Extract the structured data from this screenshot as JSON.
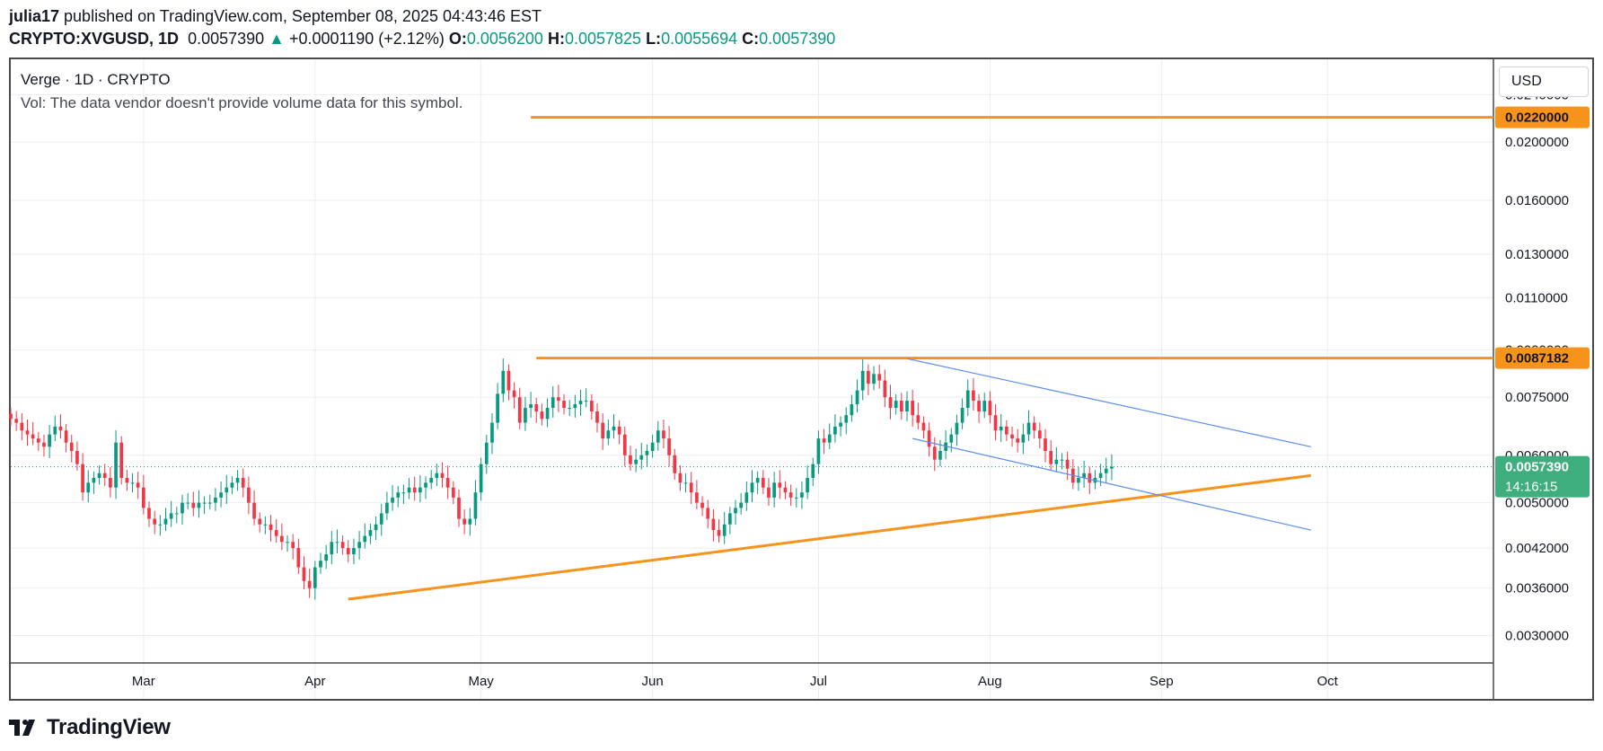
{
  "header": {
    "user": "julia17",
    "published_text": " published on TradingView.com, September 08, 2025 04:43:46 EST",
    "symbol": "CRYPTO:XVGUSD, 1D",
    "last": "0.0057390",
    "change": "+0.0001190 (+2.12%)",
    "o_label": "O:",
    "o": "0.0056200",
    "h_label": "H:",
    "h": "0.0057825",
    "l_label": "L:",
    "l": "0.0055694",
    "c_label": "C:",
    "c": "0.0057390"
  },
  "legend": {
    "title": "Verge · 1D · CRYPTO",
    "vol": "Vol: The data vendor doesn't provide volume data for this symbol."
  },
  "currency": "USD",
  "brand": "TradingView",
  "colors": {
    "up": "#089981",
    "down": "#f23645",
    "orange": "#f7931a",
    "channel": "#5b8def",
    "grid": "#ebedf1",
    "last_price_bg": "#3fae7e"
  },
  "chart_data": {
    "type": "candlestick",
    "symbol": "XVGUSD",
    "timeframe": "1D",
    "x_range": [
      "2025-02-05",
      "2025-10-31"
    ],
    "y_scale": "log",
    "ylim": [
      0.0027,
      0.0275
    ],
    "x_ticks": [
      {
        "label": "Mar",
        "date": "2025-03-01"
      },
      {
        "label": "Apr",
        "date": "2025-04-01"
      },
      {
        "label": "May",
        "date": "2025-05-01"
      },
      {
        "label": "Jun",
        "date": "2025-06-01"
      },
      {
        "label": "Jul",
        "date": "2025-07-01"
      },
      {
        "label": "Aug",
        "date": "2025-08-01"
      },
      {
        "label": "Sep",
        "date": "2025-09-01"
      },
      {
        "label": "Oct",
        "date": "2025-10-01"
      }
    ],
    "y_ticks": [
      "0.0240000",
      "0.0200000",
      "0.0160000",
      "0.0130000",
      "0.0110000",
      "0.0090000",
      "0.0075000",
      "0.0060000",
      "0.0050000",
      "0.0042000",
      "0.0036000",
      "0.0030000"
    ],
    "last_price": {
      "value": 0.005739,
      "label": "0.0057390",
      "countdown": "14:16:15"
    },
    "price_labels": [
      {
        "value": 0.022,
        "label": "0.0220000"
      },
      {
        "value": 0.0087182,
        "label": "0.0087182"
      }
    ],
    "closes": [
      0.0069,
      0.0068,
      0.0066,
      0.0065,
      0.0064,
      0.0063,
      0.0062,
      0.0065,
      0.0067,
      0.0066,
      0.0063,
      0.0061,
      0.0058,
      0.0052,
      0.0054,
      0.0055,
      0.0056,
      0.0055,
      0.0053,
      0.0063,
      0.0055,
      0.0054,
      0.0054,
      0.0053,
      0.0049,
      0.0047,
      0.0046,
      0.0046,
      0.0047,
      0.0048,
      0.0048,
      0.005,
      0.005,
      0.0049,
      0.005,
      0.005,
      0.005,
      0.0051,
      0.0052,
      0.0053,
      0.0054,
      0.0055,
      0.0053,
      0.005,
      0.0047,
      0.0046,
      0.0046,
      0.0045,
      0.0044,
      0.0043,
      0.0043,
      0.0042,
      0.0039,
      0.0037,
      0.0036,
      0.0039,
      0.004,
      0.0041,
      0.0043,
      0.0043,
      0.0042,
      0.0041,
      0.0042,
      0.0043,
      0.0044,
      0.0045,
      0.0046,
      0.0048,
      0.005,
      0.0051,
      0.0052,
      0.0052,
      0.0053,
      0.0052,
      0.0053,
      0.0054,
      0.0055,
      0.0056,
      0.0055,
      0.0053,
      0.0051,
      0.0047,
      0.0046,
      0.0047,
      0.0052,
      0.0058,
      0.0063,
      0.0068,
      0.0076,
      0.0083,
      0.0077,
      0.0075,
      0.0068,
      0.0072,
      0.0073,
      0.0071,
      0.0069,
      0.0072,
      0.0075,
      0.0074,
      0.0072,
      0.0072,
      0.0073,
      0.0074,
      0.0074,
      0.0071,
      0.0068,
      0.0064,
      0.0066,
      0.0067,
      0.0065,
      0.006,
      0.0058,
      0.0059,
      0.006,
      0.0061,
      0.0063,
      0.0066,
      0.0064,
      0.006,
      0.0056,
      0.0054,
      0.0054,
      0.0052,
      0.005,
      0.0049,
      0.0047,
      0.0045,
      0.0044,
      0.0046,
      0.0048,
      0.0049,
      0.005,
      0.0052,
      0.0054,
      0.0055,
      0.0053,
      0.0051,
      0.0054,
      0.0053,
      0.0052,
      0.0051,
      0.0051,
      0.0052,
      0.0055,
      0.0058,
      0.0064,
      0.0063,
      0.0065,
      0.0067,
      0.0068,
      0.007,
      0.0073,
      0.0077,
      0.0083,
      0.0079,
      0.0082,
      0.008,
      0.0075,
      0.0072,
      0.0074,
      0.0071,
      0.0074,
      0.007,
      0.0068,
      0.0066,
      0.0062,
      0.0059,
      0.0061,
      0.0063,
      0.0065,
      0.0068,
      0.0072,
      0.0077,
      0.0074,
      0.0071,
      0.0074,
      0.007,
      0.0066,
      0.0067,
      0.0065,
      0.0064,
      0.0063,
      0.0065,
      0.0068,
      0.0066,
      0.0064,
      0.0061,
      0.0058,
      0.0059,
      0.0059,
      0.0057,
      0.0054,
      0.0055,
      0.0056,
      0.0054,
      0.0055,
      0.0056,
      0.0057,
      0.00574
    ],
    "horizontal_levels": [
      {
        "value": 0.022,
        "from": "2025-05-10",
        "to": "2025-10-31"
      },
      {
        "value": 0.0087182,
        "from": "2025-05-11",
        "to": "2025-10-31"
      }
    ],
    "trendlines": [
      {
        "name": "rising support",
        "from": [
          "2025-04-07",
          0.00345
        ],
        "to": [
          "2025-09-28",
          0.00555
        ]
      },
      {
        "name": "channel top",
        "from": [
          "2025-07-17",
          0.0087
        ],
        "to": [
          "2025-09-28",
          0.0062
        ]
      },
      {
        "name": "channel bottom",
        "from": [
          "2025-07-18",
          0.0064
        ],
        "to": [
          "2025-09-28",
          0.0045
        ]
      }
    ]
  }
}
